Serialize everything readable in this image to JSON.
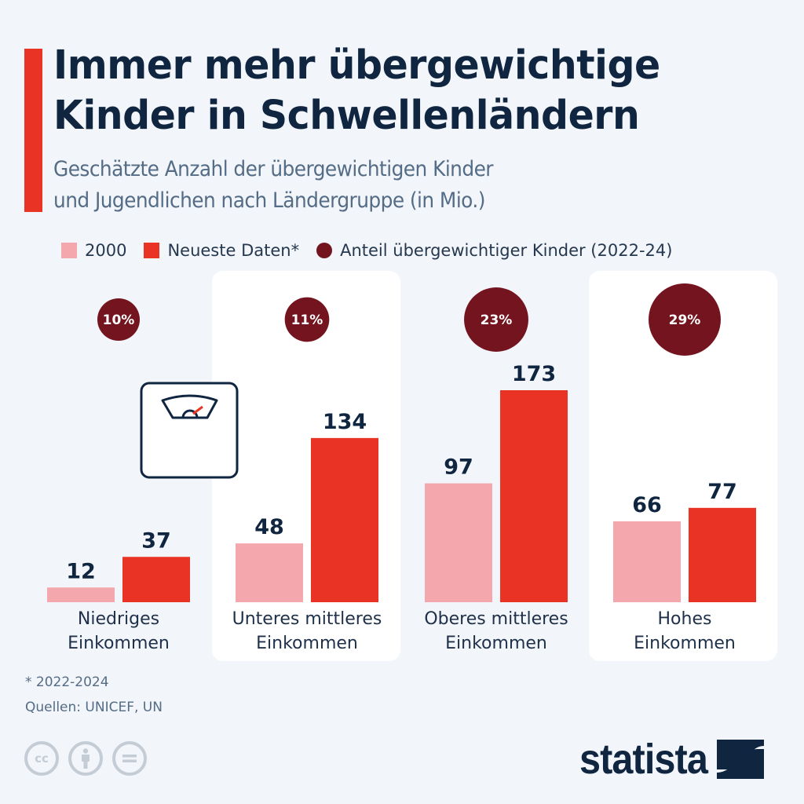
{
  "header": {
    "title_line1": "Immer mehr übergewichtige",
    "title_line2": "Kinder in Schwellenländern",
    "subtitle_line1": "Geschätzte Anzahl der übergewichtigen Kinder",
    "subtitle_line2": "und Jugendlichen nach Ländergruppe (in Mio.)"
  },
  "legend": [
    {
      "label": "2000",
      "color": "#f4a7ac",
      "shape": "square"
    },
    {
      "label": "Neueste Daten*",
      "color": "#e93325",
      "shape": "square"
    },
    {
      "label": "Anteil übergewichtiger Kinder (2022-24)",
      "color": "#74141f",
      "shape": "circle"
    }
  ],
  "chart_data": {
    "type": "bar",
    "title": "Immer mehr übergewichtige Kinder in Schwellenländern",
    "subtitle": "Geschätzte Anzahl der übergewichtigen Kinder und Jugendlichen nach Ländergruppe (in Mio.)",
    "xlabel": "",
    "ylabel": "in Mio.",
    "ylim": [
      0,
      173
    ],
    "grid": false,
    "legend_position": "top-left",
    "categories": [
      [
        "Niedriges",
        "Einkommen"
      ],
      [
        "Unteres mittleres",
        "Einkommen"
      ],
      [
        "Oberes mittleres",
        "Einkommen"
      ],
      [
        "Hohes",
        "Einkommen"
      ]
    ],
    "series": [
      {
        "name": "2000",
        "color": "#f4a7ac",
        "values": [
          12,
          48,
          97,
          66
        ]
      },
      {
        "name": "Neueste Daten*",
        "color": "#e93325",
        "values": [
          37,
          134,
          173,
          77
        ]
      }
    ],
    "share_overweight": {
      "name": "Anteil übergewichtiger Kinder (2022-24)",
      "color": "#74141f",
      "values_percent": [
        10,
        11,
        23,
        29
      ],
      "labels": [
        "10%",
        "11%",
        "23%",
        "29%"
      ]
    }
  },
  "icons": {
    "scale": "bathroom-scale-icon"
  },
  "footer": {
    "footnote": "* 2022-2024",
    "sources": "Quellen: UNICEF, UN",
    "license_icons": [
      {
        "name": "cc-icon",
        "glyph": "cc"
      },
      {
        "name": "by-attribution-icon",
        "glyph": ""
      },
      {
        "name": "no-derivatives-icon",
        "glyph": "="
      }
    ],
    "brand": "statista"
  }
}
